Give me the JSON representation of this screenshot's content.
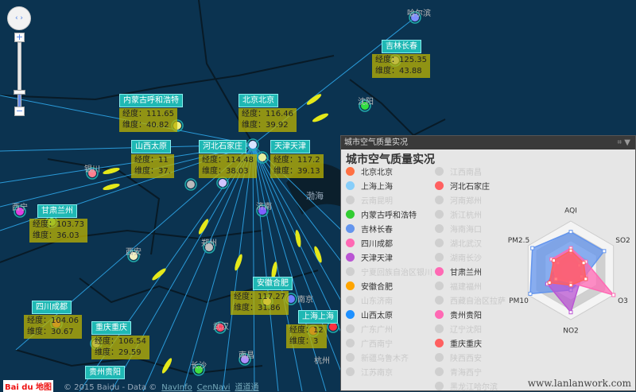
{
  "map": {
    "sea_label": "渤海",
    "small_labels": [
      "哈尔滨",
      "沈阳",
      "银川",
      "西宁",
      "西安",
      "郑州",
      "济南",
      "南京",
      "武汉",
      "长沙",
      "南昌",
      "杭州"
    ],
    "cities": [
      {
        "name": "吉林长春",
        "lng_label": "经度：",
        "lng": "125.35",
        "lat_label": "维度：",
        "lat": "43.88"
      },
      {
        "name": "内蒙古呼和浩特",
        "lng_label": "经度：",
        "lng": "111.65",
        "lat_label": "维度：",
        "lat": "40.82"
      },
      {
        "name": "山西太原",
        "lng_label": "经度：",
        "lng": "11",
        "lat_label": "维度：",
        "lat": "37."
      },
      {
        "name": "河北石家庄",
        "lng_label": "经度：",
        "lng": "114.48",
        "lat_label": "维度：",
        "lat": "38.03"
      },
      {
        "name": "北京北京",
        "lng_label": "经度：",
        "lng": "116.46",
        "lat_label": "维度：",
        "lat": "39.92"
      },
      {
        "name": "天津天津",
        "lng_label": "经度：",
        "lng": "117.2",
        "lat_label": "维度：",
        "lat": "39.13"
      },
      {
        "name": "甘肃兰州",
        "lng_label": "经度：",
        "lng": "103.73",
        "lat_label": "维度：",
        "lat": "36.03"
      },
      {
        "name": "四川成都",
        "lng_label": "经度：",
        "lng": "104.06",
        "lat_label": "维度：",
        "lat": "30.67"
      },
      {
        "name": "重庆重庆",
        "lng_label": "经度：",
        "lng": "106.54",
        "lat_label": "维度：",
        "lat": "29.59"
      },
      {
        "name": "安徽合肥",
        "lng_label": "经度：",
        "lng": "117.27",
        "lat_label": "维度：",
        "lat": "31.86"
      },
      {
        "name": "上海上海",
        "lng_label": "经度：",
        "lng": "12",
        "lat_label": "维度：",
        "lat": "3"
      },
      {
        "name": "贵州贵阳"
      }
    ],
    "controls": {
      "nav": "‹ ›",
      "zoom_in": "+",
      "zoom_out": "−"
    },
    "logo": "Bai du 地图",
    "copyright": "© 2015 Baidu - Data ©",
    "links": [
      "NavInfo",
      "CenNavi",
      "道道通"
    ]
  },
  "panel": {
    "window_title": "城市空气质量实况",
    "title": "城市空气质量实况",
    "tools": [
      "restore-icon",
      "dropdown-icon"
    ],
    "legend": [
      {
        "label": "北京北京",
        "color": "#ff7043",
        "on": true
      },
      {
        "label": "上海上海",
        "color": "#87cefa",
        "on": true
      },
      {
        "label": "云南昆明",
        "color": "#cccccc",
        "on": false
      },
      {
        "label": "内蒙古呼和浩特",
        "color": "#32cd32",
        "on": true
      },
      {
        "label": "吉林长春",
        "color": "#6495ed",
        "on": true
      },
      {
        "label": "四川成都",
        "color": "#ff69b4",
        "on": true
      },
      {
        "label": "天津天津",
        "color": "#ba55d3",
        "on": true
      },
      {
        "label": "宁夏回族自治区银川",
        "color": "#cccccc",
        "on": false
      },
      {
        "label": "安徽合肥",
        "color": "#ffa500",
        "on": true
      },
      {
        "label": "山东济南",
        "color": "#cccccc",
        "on": false
      },
      {
        "label": "山西太原",
        "color": "#1e90ff",
        "on": true
      },
      {
        "label": "广东广州",
        "color": "#cccccc",
        "on": false
      },
      {
        "label": "广西南宁",
        "color": "#cccccc",
        "on": false
      },
      {
        "label": "新疆乌鲁木齐",
        "color": "#cccccc",
        "on": false
      },
      {
        "label": "江苏南京",
        "color": "#cccccc",
        "on": false
      },
      {
        "label": "江西南昌",
        "color": "#cccccc",
        "on": false
      },
      {
        "label": "河北石家庄",
        "color": "#ff6060",
        "on": true
      },
      {
        "label": "河南郑州",
        "color": "#cccccc",
        "on": false
      },
      {
        "label": "浙江杭州",
        "color": "#cccccc",
        "on": false
      },
      {
        "label": "海南海口",
        "color": "#cccccc",
        "on": false
      },
      {
        "label": "湖北武汉",
        "color": "#cccccc",
        "on": false
      },
      {
        "label": "湖南长沙",
        "color": "#cccccc",
        "on": false
      },
      {
        "label": "甘肃兰州",
        "color": "#ff69b4",
        "on": true
      },
      {
        "label": "福建福州",
        "color": "#cccccc",
        "on": false
      },
      {
        "label": "西藏自治区拉萨",
        "color": "#cccccc",
        "on": false
      },
      {
        "label": "贵州贵阳",
        "color": "#ff69b4",
        "on": true
      },
      {
        "label": "辽宁沈阳",
        "color": "#cccccc",
        "on": false
      },
      {
        "label": "重庆重庆",
        "color": "#ff6060",
        "on": true
      },
      {
        "label": "陕西西安",
        "color": "#cccccc",
        "on": false
      },
      {
        "label": "青海西宁",
        "color": "#cccccc",
        "on": false
      },
      {
        "label": "黑龙江哈尔滨",
        "color": "#cccccc",
        "on": false
      }
    ],
    "radar": {
      "indicators": [
        "AQI",
        "SO2",
        "O3",
        "NO2",
        "PM10",
        "PM2.5"
      ],
      "series": [
        {
          "color": "#6495ed",
          "values": [
            0.78,
            0.78,
            0.3,
            0.4,
            0.95,
            0.9
          ]
        },
        {
          "color": "#ba55d3",
          "values": [
            0.35,
            0.2,
            0.25,
            0.85,
            0.55,
            0.3
          ]
        },
        {
          "color": "#ff69b4",
          "values": [
            0.45,
            0.35,
            1.0,
            0.25,
            0.35,
            0.45
          ]
        },
        {
          "color": "#ff6060",
          "values": [
            0.4,
            0.3,
            0.35,
            0.3,
            0.5,
            0.4
          ]
        }
      ]
    }
  },
  "watermark": "www.lanlanwork.com"
}
